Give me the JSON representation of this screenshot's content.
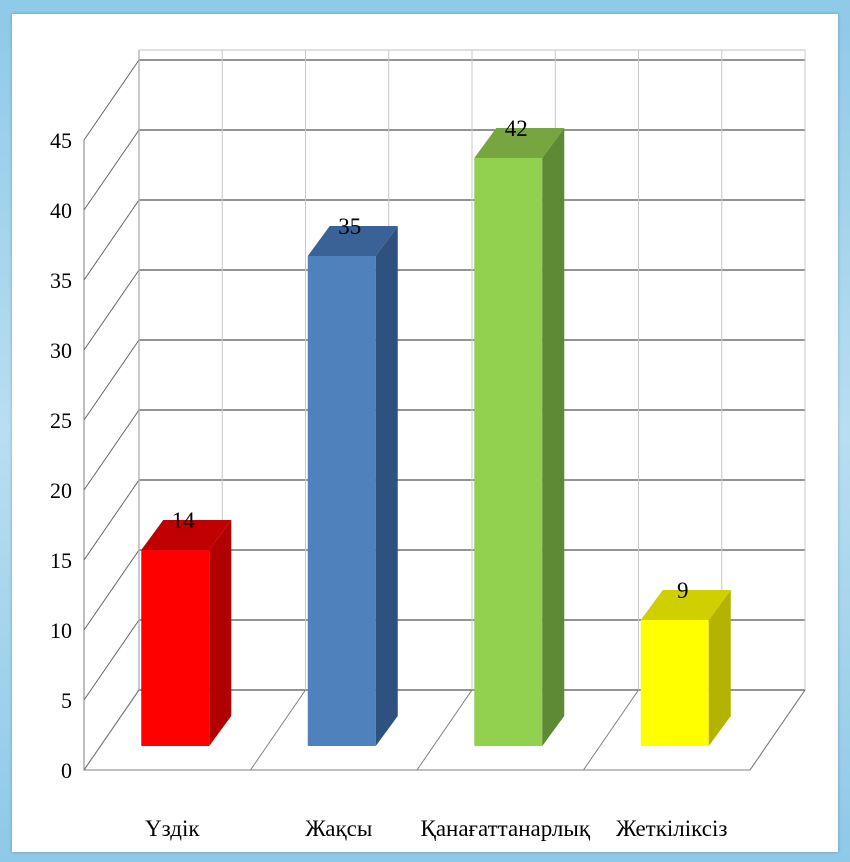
{
  "chart_data": {
    "type": "bar",
    "style": "3d-column",
    "categories": [
      "Үздік",
      "Жақсы",
      "Қанағаттанарлық",
      "Жеткіліксіз"
    ],
    "values": [
      14,
      35,
      42,
      9
    ],
    "colors": [
      "#ff0000",
      "#4f81bd",
      "#92d050",
      "#ffff00"
    ],
    "side_colors": [
      "#b00000",
      "#2f5180",
      "#5f8a35",
      "#b3b300"
    ],
    "top_colors": [
      "#c00000",
      "#3a6296",
      "#77a640",
      "#d0d000"
    ],
    "ylim": [
      0,
      45
    ],
    "yticks": [
      "0",
      "5",
      "10",
      "15",
      "20",
      "25",
      "30",
      "35",
      "40",
      "45"
    ],
    "data_labels": [
      "14",
      "35",
      "42",
      "9"
    ],
    "grid": true,
    "legend": "none",
    "title": "",
    "xlabel": "",
    "ylabel": ""
  }
}
